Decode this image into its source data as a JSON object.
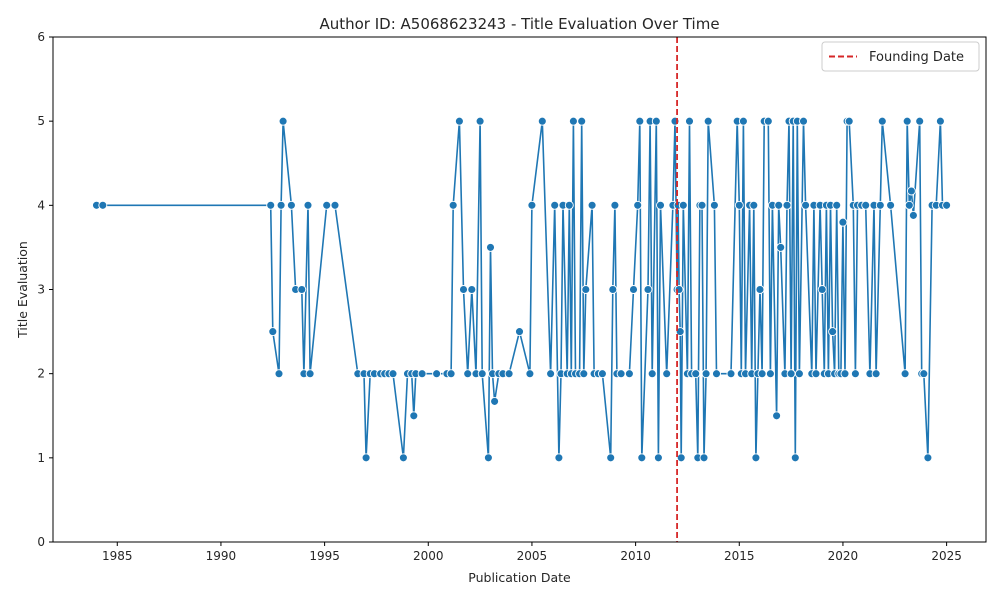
{
  "chart_data": {
    "type": "line",
    "title": "Author ID: A5068623243 - Title Evaluation Over Time",
    "xlabel": "Publication Date",
    "ylabel": "Title Evaluation",
    "xlim": [
      1981.9,
      2026.9
    ],
    "ylim": [
      0,
      6
    ],
    "xticks": [
      1985,
      1990,
      1995,
      2000,
      2005,
      2010,
      2015,
      2020,
      2025
    ],
    "yticks": [
      0,
      1,
      2,
      3,
      4,
      5,
      6
    ],
    "grid": false,
    "legend": {
      "position": "top-right",
      "entries": [
        {
          "label": "Founding Date",
          "style": "dashed",
          "color": "#d62728"
        }
      ]
    },
    "series": [
      {
        "color": "#1f77b4",
        "marker": "circle",
        "points": [
          [
            1984.0,
            4
          ],
          [
            1984.3,
            4
          ],
          [
            1992.4,
            4
          ],
          [
            1992.5,
            2.5
          ],
          [
            1992.8,
            2
          ],
          [
            1992.9,
            4
          ],
          [
            1993.0,
            5
          ],
          [
            1993.4,
            4
          ],
          [
            1993.6,
            3
          ],
          [
            1993.9,
            3
          ],
          [
            1994.0,
            2
          ],
          [
            1994.2,
            4
          ],
          [
            1994.3,
            2
          ],
          [
            1995.1,
            4
          ],
          [
            1995.5,
            4
          ],
          [
            1996.6,
            2
          ],
          [
            1996.9,
            2
          ],
          [
            1997.0,
            1
          ],
          [
            1997.2,
            2
          ],
          [
            1997.4,
            2
          ],
          [
            1997.7,
            2
          ],
          [
            1997.9,
            2
          ],
          [
            1998.1,
            2
          ],
          [
            1998.3,
            2
          ],
          [
            1998.8,
            1
          ],
          [
            1999.0,
            2
          ],
          [
            1999.2,
            2
          ],
          [
            1999.3,
            1.5
          ],
          [
            1999.4,
            2
          ],
          [
            1999.7,
            2
          ],
          [
            2000.4,
            2
          ],
          [
            2000.9,
            2
          ],
          [
            2001.1,
            2
          ],
          [
            2001.2,
            4
          ],
          [
            2001.5,
            5
          ],
          [
            2001.7,
            3
          ],
          [
            2001.9,
            2
          ],
          [
            2002.1,
            3
          ],
          [
            2002.3,
            2
          ],
          [
            2002.5,
            5
          ],
          [
            2002.6,
            2
          ],
          [
            2002.9,
            1
          ],
          [
            2003.0,
            3.5
          ],
          [
            2003.1,
            2
          ],
          [
            2003.2,
            1.67
          ],
          [
            2003.4,
            2
          ],
          [
            2003.6,
            2
          ],
          [
            2003.9,
            2
          ],
          [
            2004.4,
            2.5
          ],
          [
            2004.9,
            2
          ],
          [
            2005.0,
            4
          ],
          [
            2005.5,
            5
          ],
          [
            2005.9,
            2
          ],
          [
            2006.1,
            4
          ],
          [
            2006.3,
            1
          ],
          [
            2006.4,
            2
          ],
          [
            2006.5,
            4
          ],
          [
            2006.7,
            2
          ],
          [
            2006.8,
            4
          ],
          [
            2006.9,
            2
          ],
          [
            2007.0,
            5
          ],
          [
            2007.1,
            2
          ],
          [
            2007.3,
            2
          ],
          [
            2007.4,
            5
          ],
          [
            2007.5,
            2
          ],
          [
            2007.6,
            3
          ],
          [
            2007.9,
            4
          ],
          [
            2008.0,
            2
          ],
          [
            2008.2,
            2
          ],
          [
            2008.4,
            2
          ],
          [
            2008.8,
            1
          ],
          [
            2008.9,
            3
          ],
          [
            2009.0,
            4
          ],
          [
            2009.1,
            2
          ],
          [
            2009.3,
            2
          ],
          [
            2009.7,
            2
          ],
          [
            2009.9,
            3
          ],
          [
            2010.1,
            4
          ],
          [
            2010.2,
            5
          ],
          [
            2010.3,
            1
          ],
          [
            2010.6,
            3
          ],
          [
            2010.7,
            5
          ],
          [
            2010.8,
            2
          ],
          [
            2011.0,
            5
          ],
          [
            2011.1,
            1
          ],
          [
            2011.2,
            4
          ],
          [
            2011.5,
            2
          ],
          [
            2011.8,
            4
          ],
          [
            2011.9,
            5
          ],
          [
            2012.0,
            3
          ],
          [
            2012.05,
            4
          ],
          [
            2012.1,
            3
          ],
          [
            2012.15,
            2.5
          ],
          [
            2012.2,
            1
          ],
          [
            2012.3,
            4
          ],
          [
            2012.5,
            2
          ],
          [
            2012.6,
            5
          ],
          [
            2012.7,
            2
          ],
          [
            2012.9,
            2
          ],
          [
            2013.0,
            1
          ],
          [
            2013.1,
            4
          ],
          [
            2013.2,
            4
          ],
          [
            2013.3,
            1
          ],
          [
            2013.4,
            2
          ],
          [
            2013.5,
            5
          ],
          [
            2013.8,
            4
          ],
          [
            2013.9,
            2
          ],
          [
            2014.6,
            2
          ],
          [
            2014.9,
            5
          ],
          [
            2015.0,
            4
          ],
          [
            2015.1,
            2
          ],
          [
            2015.2,
            5
          ],
          [
            2015.3,
            2
          ],
          [
            2015.5,
            4
          ],
          [
            2015.6,
            2
          ],
          [
            2015.7,
            4
          ],
          [
            2015.8,
            1
          ],
          [
            2015.9,
            2
          ],
          [
            2016.0,
            3
          ],
          [
            2016.1,
            2
          ],
          [
            2016.2,
            5
          ],
          [
            2016.4,
            5
          ],
          [
            2016.5,
            2
          ],
          [
            2016.6,
            4
          ],
          [
            2016.8,
            1.5
          ],
          [
            2016.9,
            4
          ],
          [
            2017.0,
            3.5
          ],
          [
            2017.2,
            2
          ],
          [
            2017.3,
            4
          ],
          [
            2017.4,
            5
          ],
          [
            2017.5,
            2
          ],
          [
            2017.6,
            5
          ],
          [
            2017.7,
            1
          ],
          [
            2017.8,
            5
          ],
          [
            2017.9,
            2
          ],
          [
            2018.1,
            5
          ],
          [
            2018.2,
            4
          ],
          [
            2018.5,
            2
          ],
          [
            2018.6,
            4
          ],
          [
            2018.7,
            2
          ],
          [
            2018.9,
            4
          ],
          [
            2019.0,
            3
          ],
          [
            2019.1,
            2
          ],
          [
            2019.2,
            4
          ],
          [
            2019.3,
            2
          ],
          [
            2019.4,
            4
          ],
          [
            2019.5,
            2.5
          ],
          [
            2019.6,
            2
          ],
          [
            2019.7,
            4
          ],
          [
            2019.8,
            2
          ],
          [
            2019.9,
            2
          ],
          [
            2020.0,
            3.8
          ],
          [
            2020.1,
            2
          ],
          [
            2020.2,
            5
          ],
          [
            2020.3,
            5
          ],
          [
            2020.5,
            4
          ],
          [
            2020.6,
            2
          ],
          [
            2020.7,
            4
          ],
          [
            2020.9,
            4
          ],
          [
            2021.1,
            4
          ],
          [
            2021.3,
            2
          ],
          [
            2021.5,
            4
          ],
          [
            2021.6,
            2
          ],
          [
            2021.8,
            4
          ],
          [
            2021.9,
            5
          ],
          [
            2022.3,
            4
          ],
          [
            2023.0,
            2
          ],
          [
            2023.1,
            5
          ],
          [
            2023.2,
            4
          ],
          [
            2023.3,
            4.17
          ],
          [
            2023.4,
            3.88
          ],
          [
            2023.7,
            5
          ],
          [
            2023.8,
            2
          ],
          [
            2023.9,
            2
          ],
          [
            2024.1,
            1
          ],
          [
            2024.3,
            4
          ],
          [
            2024.5,
            4
          ],
          [
            2024.7,
            5
          ],
          [
            2024.8,
            4
          ],
          [
            2025.0,
            4
          ]
        ]
      }
    ],
    "founding_date": 2012.0
  }
}
